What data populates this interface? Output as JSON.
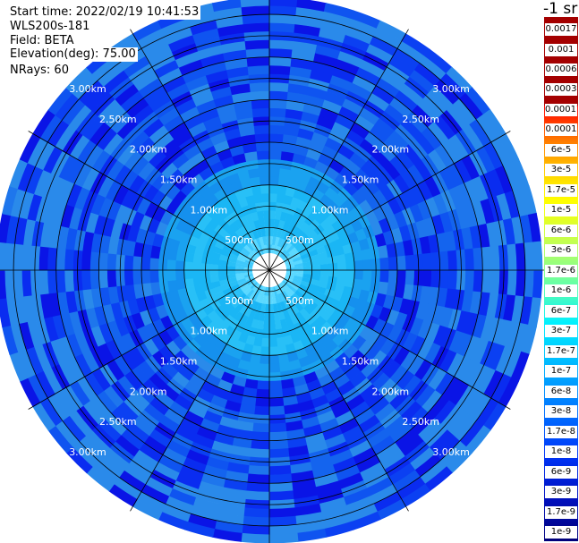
{
  "header": {
    "start_time": "Start time: 2022/02/19 10:41:53",
    "device": "WLS200s-181",
    "field": "Field: BETA",
    "elevation": "Elevation(deg): 75.00",
    "nrays": "NRays: 60"
  },
  "colorbar": {
    "title": "-1 sr",
    "upper_labels": [
      "0.0017",
      "0.001",
      "0.0006",
      "0.0003"
    ],
    "upper_colors": [
      "#8b0000",
      "#a40000",
      "#bd0000",
      "#d40000"
    ],
    "lower_labels": [
      "0.00017",
      "0.0001",
      "6e-5",
      "3e-5",
      "1.7e-5",
      "1e-5",
      "6e-6",
      "3e-6",
      "1.7e-6",
      "1e-6",
      "6e-7",
      "3e-7",
      "1.7e-7",
      "1e-7",
      "6e-8",
      "3e-8",
      "1.7e-8",
      "1e-8",
      "6e-9",
      "3e-9",
      "1.7e-9",
      "1e-9"
    ],
    "lower_colors": [
      "#ff0000",
      "#ff3a00",
      "#ff7a00",
      "#ffb000",
      "#ffe000",
      "#ffff00",
      "#e0ff30",
      "#b8ff60",
      "#8cff8c",
      "#5cffb0",
      "#2effd6",
      "#00f0ff",
      "#00d4ff",
      "#00b4ff",
      "#0094ff",
      "#0074ff",
      "#0054ff",
      "#0036f8",
      "#0020e0",
      "#0010c0",
      "#00089c",
      "#00007a"
    ]
  },
  "polar": {
    "range_labels": [
      "500m",
      "1.00km",
      "1.50km",
      "2.00km",
      "2.50km",
      "3.00km"
    ],
    "range_km": [
      0.5,
      1.0,
      1.5,
      2.0,
      2.5,
      3.0
    ],
    "max_range_km": 3.2,
    "rays": 60,
    "gates": 32
  }
}
